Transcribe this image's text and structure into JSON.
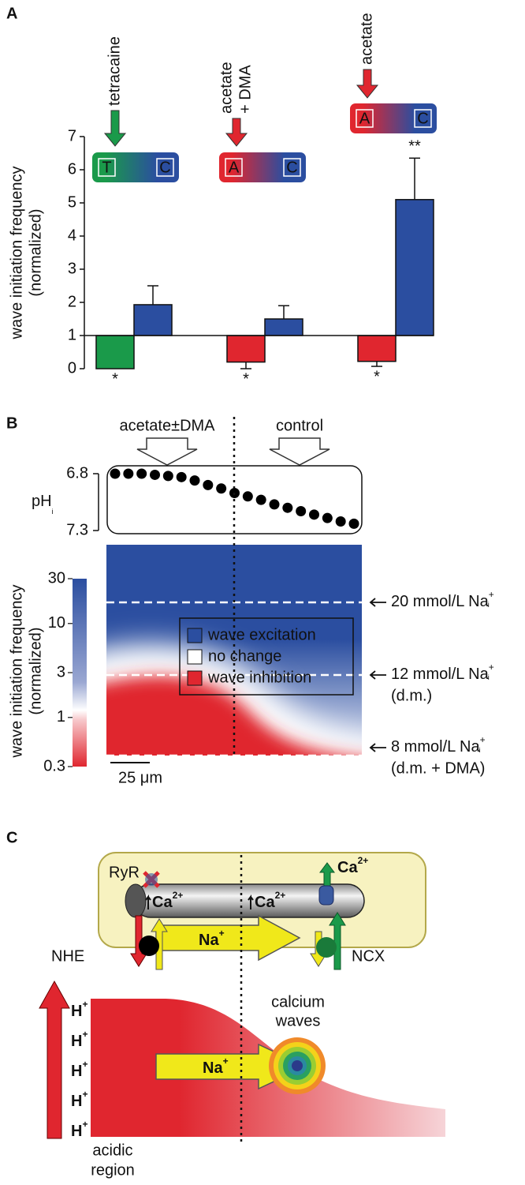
{
  "panel_labels": [
    "A",
    "B",
    "C"
  ],
  "chart_data": [
    {
      "type": "bar",
      "ylabel": [
        "wave initiation frequency",
        "(normalized)"
      ],
      "categories": [
        null,
        null,
        null
      ],
      "baseline": 1,
      "ylim": [
        0,
        7
      ],
      "yticks": [
        0,
        1,
        2,
        3,
        4,
        5,
        6,
        7
      ],
      "series": [
        {
          "colors": [
            "#1a9a4a",
            "#e0262f",
            "#e0262f"
          ],
          "values": [
            0,
            0.2,
            0.22
          ],
          "errors": [
            null,
            0.2,
            0.15
          ],
          "markers": [
            "*",
            "*",
            "*"
          ]
        },
        {
          "color": "#2b4ea0",
          "values": [
            1.93,
            1.5,
            5.1
          ],
          "errors": [
            0.57,
            0.4,
            1.25
          ],
          "markers": [
            null,
            null,
            "**"
          ]
        }
      ],
      "treatments": [
        {
          "label": [
            "tetracaine"
          ],
          "color": "#1a9a4a",
          "box": [
            "T",
            "C"
          ]
        },
        {
          "label": [
            "acetate",
            "+ DMA"
          ],
          "color": "#e0262f",
          "box": [
            "A",
            "C"
          ]
        },
        {
          "label": [
            "acetate"
          ],
          "color": "#e0262f",
          "box": [
            "A",
            "C"
          ]
        }
      ]
    },
    {
      "type": "dot",
      "ylabel": {
        "text": "pH",
        "sub": "i"
      },
      "top_labels": [
        "acetate±DMA",
        "control"
      ],
      "ylim": [
        7.3,
        6.8
      ],
      "yticks": [
        6.8,
        7.3
      ],
      "color": "#000000",
      "values": [
        6.8,
        6.8,
        6.8,
        6.81,
        6.82,
        6.83,
        6.86,
        6.9,
        6.93,
        6.97,
        7.0,
        7.03,
        7.07,
        7.1,
        7.13,
        7.16,
        7.19,
        7.22,
        7.24
      ]
    },
    {
      "type": "heatmap",
      "ylabel": [
        "wave initiation frequency",
        "(normalized)"
      ],
      "log": true,
      "ylim": [
        0.3,
        30
      ],
      "yticks": [
        0.3,
        1,
        3,
        10,
        30
      ],
      "colors": [
        "#e0262f",
        "#ffffff",
        "#2b4ea0"
      ],
      "legend": [
        {
          "label": "wave excitation",
          "color": "#2b4ea0"
        },
        {
          "label": "no change",
          "color": "#ffffff"
        },
        {
          "label": "wave inhibition",
          "color": "#e0262f"
        }
      ],
      "levels": [
        {
          "text": "20 mmol/L Na",
          "sup": "+",
          "sub": "i"
        },
        {
          "text": "12 mmol/L Na",
          "sup": "+",
          "sub": "i",
          "note": "(d.m.)"
        },
        {
          "text": "8 mmol/L Na",
          "sup": "+",
          "sub": "i",
          "note": "(d.m. + DMA)"
        }
      ],
      "scale_bar": "25 μm"
    }
  ],
  "diagram": {
    "ryr": "RyR",
    "ca_labels": [
      {
        "text": "Ca",
        "sup": "2+"
      },
      {
        "text": "Ca",
        "sup": "2+"
      },
      {
        "text": "Ca",
        "sup": "2+"
      }
    ],
    "na_labels": [
      {
        "text": "Na",
        "sup": "+"
      },
      {
        "text": "Na",
        "sup": "+"
      }
    ],
    "nhe": "NHE",
    "ncx": "NCX",
    "h_labels": [
      {
        "text": "H",
        "sup": "+"
      },
      {
        "text": "H",
        "sup": "+"
      },
      {
        "text": "H",
        "sup": "+"
      },
      {
        "text": "H",
        "sup": "+"
      },
      {
        "text": "H",
        "sup": "+"
      }
    ],
    "waves": [
      "calcium",
      "waves"
    ],
    "region": [
      "acidic",
      "region"
    ]
  }
}
